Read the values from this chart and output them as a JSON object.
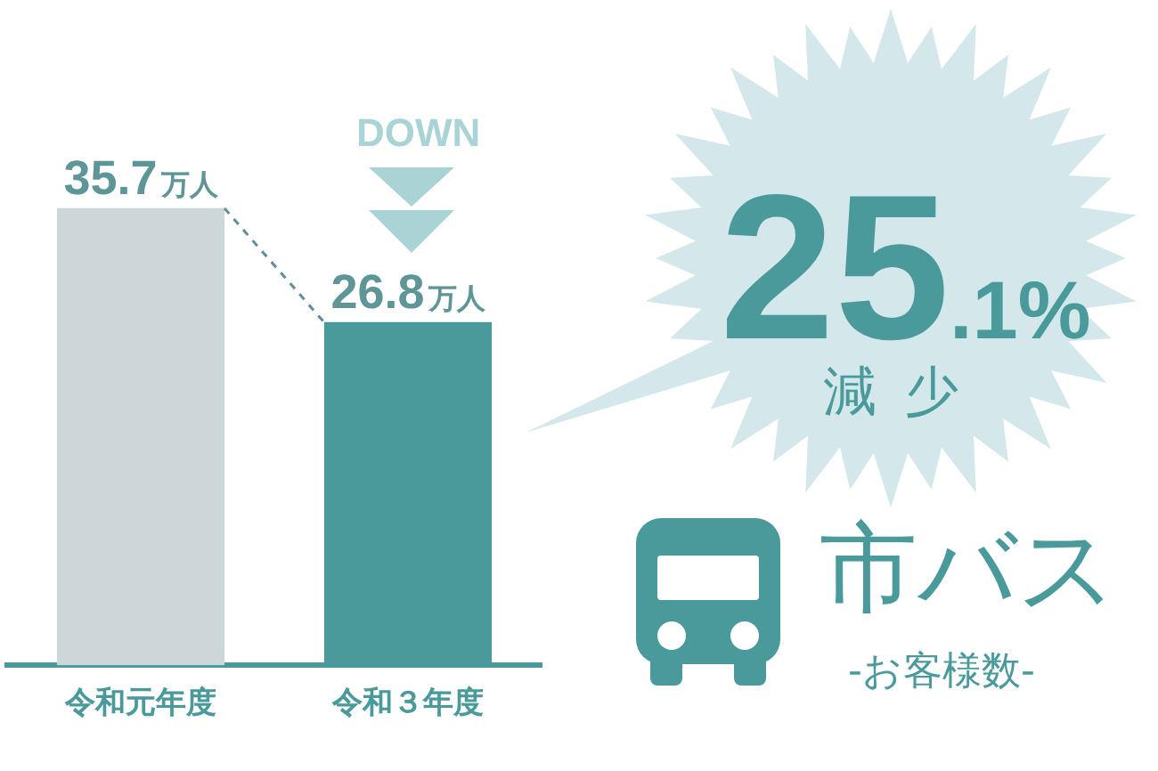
{
  "chart_data": {
    "type": "bar",
    "title": "市バス",
    "subtitle": "-お客様数-",
    "categories": [
      "令和元年度",
      "令和３年度"
    ],
    "values": [
      35.7,
      26.8
    ],
    "colors": [
      "#cdd7da",
      "#4a9a9c"
    ],
    "value_labels": [
      "35.7万人",
      "26.8万人"
    ],
    "tick_labels": "x",
    "annotations": [
      "DOWN",
      "25.1%",
      "減少"
    ]
  }
}
